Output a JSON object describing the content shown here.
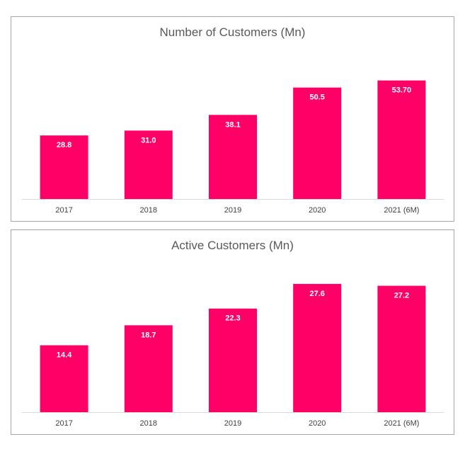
{
  "chart_data": [
    {
      "type": "bar",
      "title": "Number of Customers (Mn)",
      "categories": [
        "2017",
        "2018",
        "2019",
        "2020",
        "2021 (6M)"
      ],
      "values": [
        28.8,
        31.0,
        38.1,
        50.5,
        53.7
      ],
      "value_labels": [
        "28.8",
        "31.0",
        "38.1",
        "50.5",
        "53.70"
      ],
      "xlabel": "",
      "ylabel": "",
      "ylim": [
        0,
        60
      ],
      "grid": false,
      "legend": "none",
      "bar_color": "#ff0066"
    },
    {
      "type": "bar",
      "title": "Active Customers (Mn)",
      "categories": [
        "2017",
        "2018",
        "2019",
        "2020",
        "2021 (6M)"
      ],
      "values": [
        14.4,
        18.7,
        22.3,
        27.6,
        27.2
      ],
      "value_labels": [
        "14.4",
        "18.7",
        "22.3",
        "27.6",
        "27.2"
      ],
      "xlabel": "",
      "ylabel": "",
      "ylim": [
        0,
        28.5
      ],
      "grid": false,
      "legend": "none",
      "bar_color": "#ff0066"
    }
  ]
}
